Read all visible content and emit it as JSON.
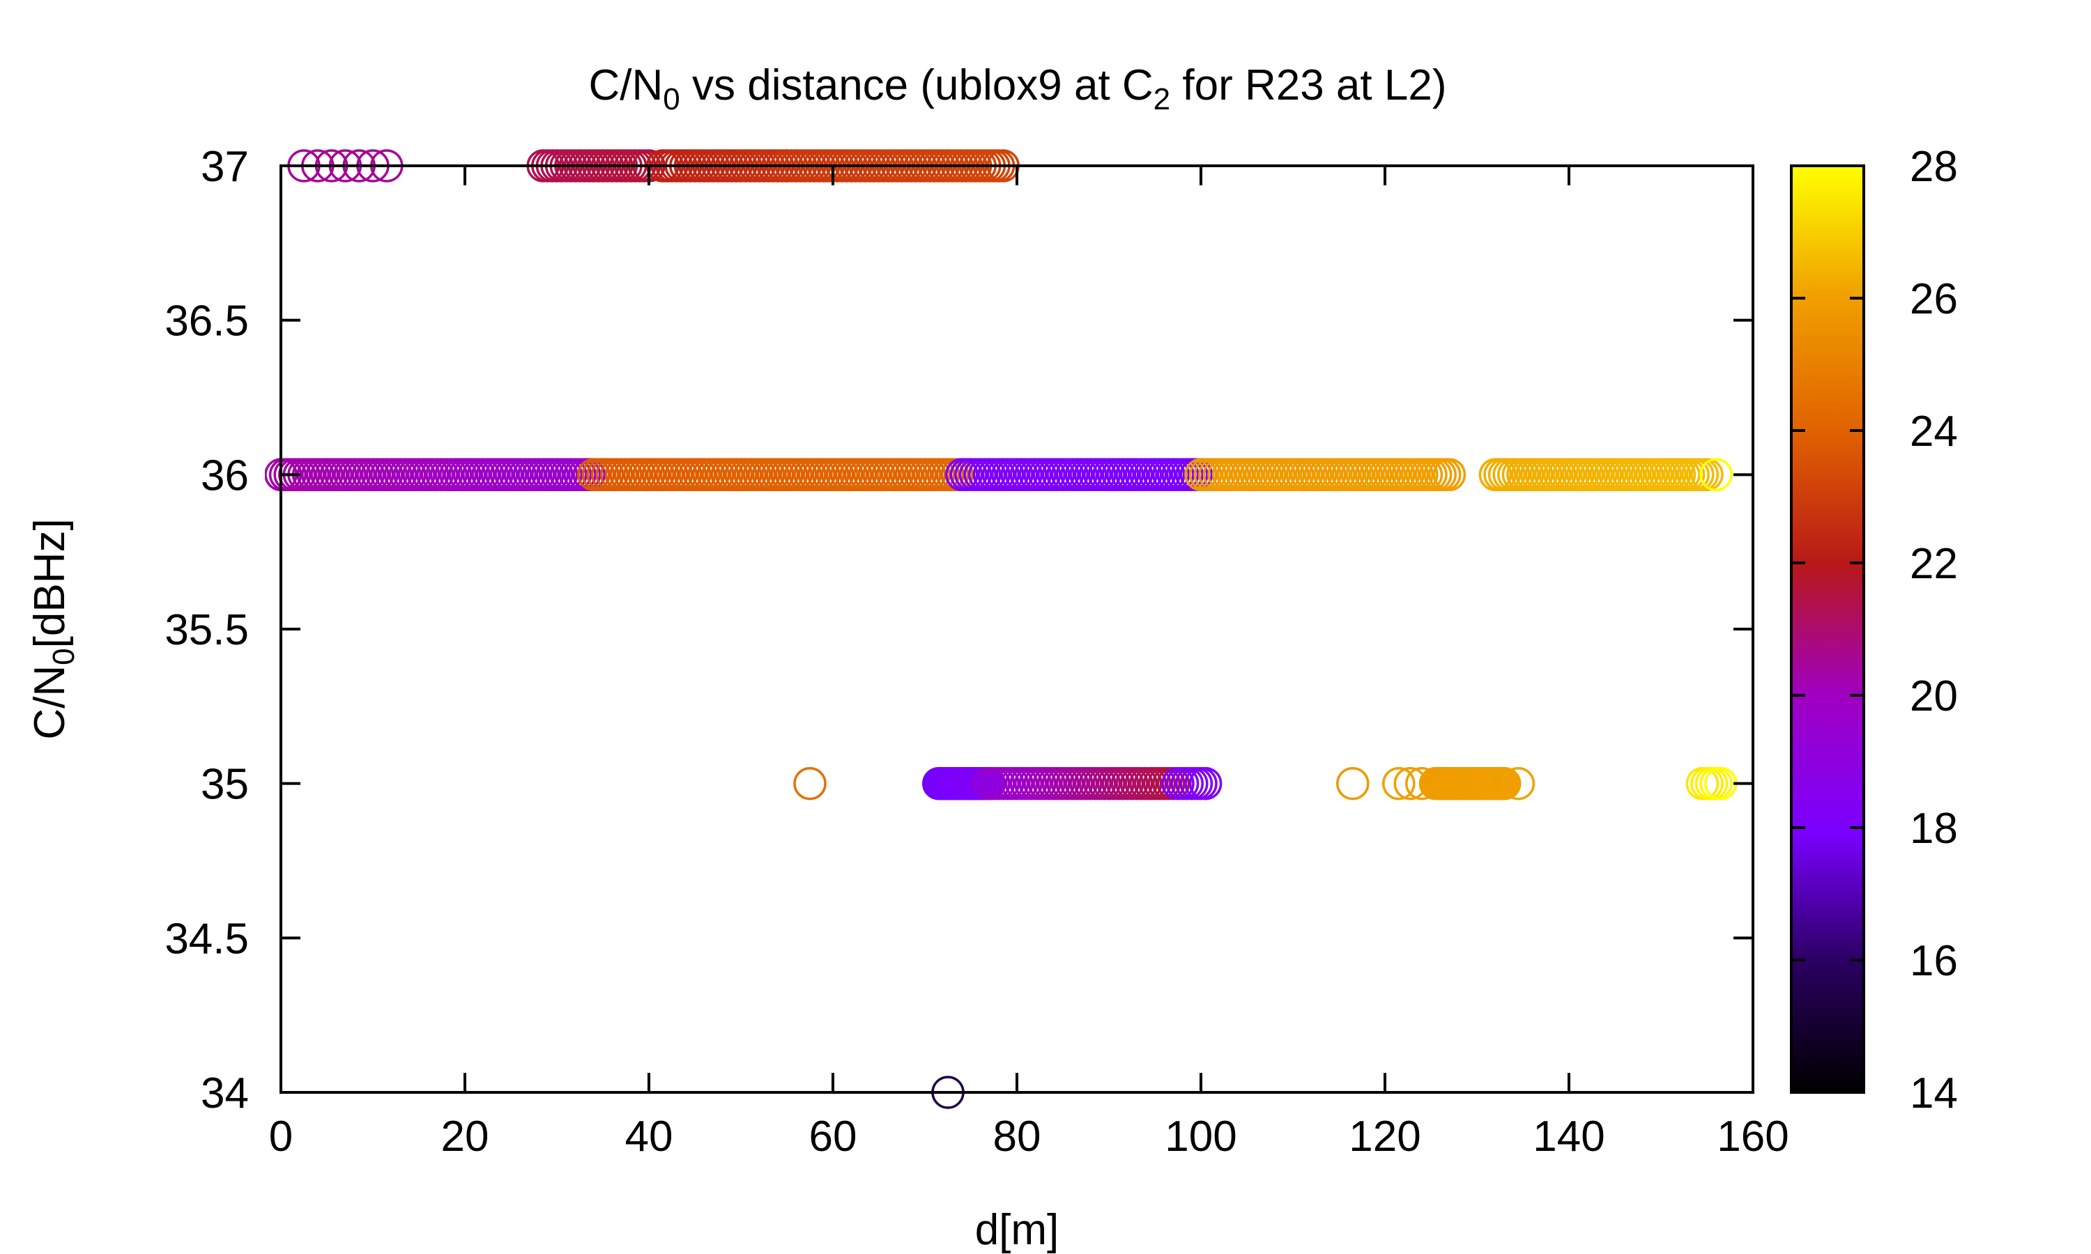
{
  "chart_data": {
    "type": "scatter",
    "title_parts": [
      "C/N",
      "0",
      " vs distance (ublox9 at C",
      "2",
      " for R23 at L2)"
    ],
    "xlabel": "d[m]",
    "ylabel_parts": [
      "C/N",
      "0",
      "[dBHz]"
    ],
    "xlim": [
      0,
      160
    ],
    "ylim": [
      34,
      37
    ],
    "xticks": [
      0,
      20,
      40,
      60,
      80,
      100,
      120,
      140,
      160
    ],
    "xtick_labels": [
      "0",
      "20",
      "40",
      "60",
      "80",
      "100",
      "120",
      "140",
      "160"
    ],
    "yticks": [
      34,
      34.5,
      35,
      35.5,
      36,
      36.5,
      37
    ],
    "ytick_labels": [
      "34",
      "34.5",
      "35",
      "35.5",
      "36",
      "36.5",
      "37"
    ],
    "colorbar": {
      "range": [
        14,
        28
      ],
      "ticks": [
        14,
        16,
        18,
        20,
        22,
        24,
        26,
        28
      ],
      "tick_labels": [
        "14",
        "16",
        "18",
        "20",
        "22",
        "24",
        "26",
        "28"
      ],
      "palette": "black-blue-purple-red-orange-yellow"
    },
    "marker": "open-circle",
    "grid": false,
    "legend": "none",
    "segments": [
      {
        "y": 37,
        "x_start": 2.5,
        "x_end": 11.5,
        "step": 1.5,
        "c_start": 20.5,
        "c_end": 20.5
      },
      {
        "y": 37,
        "x_start": 28.5,
        "x_end": 40,
        "step": 0.5,
        "c_start": 21.3,
        "c_end": 21.6
      },
      {
        "y": 37,
        "x_start": 41.5,
        "x_end": 55,
        "step": 0.5,
        "c_start": 22.2,
        "c_end": 22.7
      },
      {
        "y": 37,
        "x_start": 55,
        "x_end": 78.5,
        "step": 0.5,
        "c_start": 22.8,
        "c_end": 23.2
      },
      {
        "y": 36,
        "x_start": 0,
        "x_end": 20,
        "step": 0.5,
        "c_start": 20.3,
        "c_end": 20.0
      },
      {
        "y": 36,
        "x_start": 20,
        "x_end": 34,
        "step": 0.5,
        "c_start": 19.9,
        "c_end": 19.5
      },
      {
        "y": 36,
        "x_start": 34,
        "x_end": 55,
        "step": 0.5,
        "c_start": 23.8,
        "c_end": 24.0
      },
      {
        "y": 36,
        "x_start": 55,
        "x_end": 74,
        "step": 0.5,
        "c_start": 24.0,
        "c_end": 24.2
      },
      {
        "y": 36,
        "x_start": 74,
        "x_end": 100,
        "step": 0.5,
        "c_start": 18.2,
        "c_end": 17.9
      },
      {
        "y": 36,
        "x_start": 100,
        "x_end": 127,
        "step": 0.5,
        "c_start": 25.8,
        "c_end": 26.0
      },
      {
        "y": 36,
        "x_start": 132,
        "x_end": 155,
        "step": 0.5,
        "c_start": 26.3,
        "c_end": 26.6
      },
      {
        "y": 36,
        "x_start": 156,
        "x_end": 156,
        "step": 1,
        "c_start": 28,
        "c_end": 28
      },
      {
        "y": 35,
        "x_start": 57.5,
        "x_end": 57.5,
        "step": 1,
        "c_start": 24.5,
        "c_end": 24.5
      },
      {
        "y": 35,
        "x_start": 71.5,
        "x_end": 77,
        "step": 0.25,
        "c_start": 17.8,
        "c_end": 18.3
      },
      {
        "y": 35,
        "x_start": 77,
        "x_end": 97,
        "step": 0.5,
        "c_start": 19.5,
        "c_end": 21.5
      },
      {
        "y": 35,
        "x_start": 97.5,
        "x_end": 100.5,
        "step": 0.5,
        "c_start": 18.3,
        "c_end": 18.3
      },
      {
        "y": 35,
        "x_start": 116.5,
        "x_end": 116.5,
        "step": 1,
        "c_start": 25.8,
        "c_end": 25.8
      },
      {
        "y": 35,
        "x_start": 121.5,
        "x_end": 124,
        "step": 1.2,
        "c_start": 26.0,
        "c_end": 26.0
      },
      {
        "y": 35,
        "x_start": 125.5,
        "x_end": 133,
        "step": 0.25,
        "c_start": 25.9,
        "c_end": 26.0
      },
      {
        "y": 35,
        "x_start": 134.5,
        "x_end": 134.5,
        "step": 1,
        "c_start": 26.1,
        "c_end": 26.1
      },
      {
        "y": 35,
        "x_start": 154.5,
        "x_end": 156.5,
        "step": 0.5,
        "c_start": 27.5,
        "c_end": 28
      },
      {
        "y": 34,
        "x_start": 72.5,
        "x_end": 72.5,
        "step": 1,
        "c_start": 15.5,
        "c_end": 15.5
      }
    ]
  }
}
